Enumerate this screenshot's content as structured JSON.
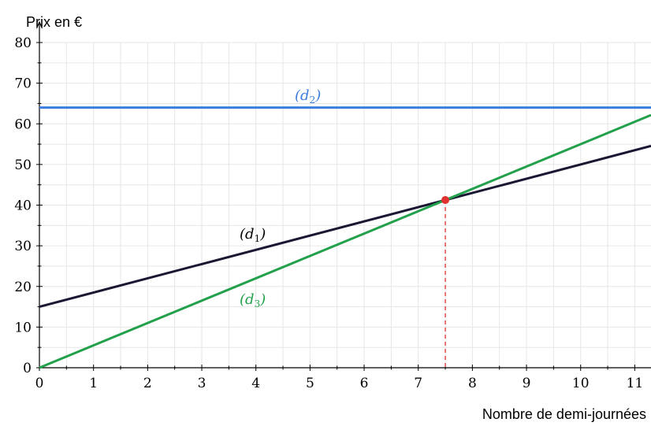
{
  "chart_data": {
    "type": "line",
    "ylabel": "Prix en €",
    "xlabel": "Nombre de demi-journées",
    "xlim": [
      0,
      11.3
    ],
    "ylim": [
      0,
      80
    ],
    "xticks": [
      0,
      1,
      2,
      3,
      4,
      5,
      6,
      7,
      8,
      9,
      10,
      11
    ],
    "yticks": [
      0,
      10,
      20,
      30,
      40,
      50,
      60,
      70,
      80
    ],
    "grid": true,
    "series": [
      {
        "name": "(d1)",
        "x": [
          0,
          11.3
        ],
        "y": [
          15,
          54.55
        ],
        "color": "#1a1733"
      },
      {
        "name": "(d2)",
        "x": [
          0,
          11.3
        ],
        "y": [
          64,
          64
        ],
        "color": "#3b7ddd"
      },
      {
        "name": "(d3)",
        "x": [
          0,
          11.3
        ],
        "y": [
          0,
          62.15
        ],
        "color": "#22a04b"
      }
    ],
    "annotations": [
      {
        "type": "point",
        "x": 7.5,
        "y": 41.25,
        "color": "#e03030"
      },
      {
        "type": "dashed-vline",
        "x": 7.5,
        "y_from": 0,
        "y_to": 41.25,
        "color": "#e03030"
      }
    ]
  },
  "labels": {
    "d1": {
      "main": "d",
      "sub": "1"
    },
    "d2": {
      "main": "d",
      "sub": "2"
    },
    "d3": {
      "main": "d",
      "sub": "3"
    }
  }
}
